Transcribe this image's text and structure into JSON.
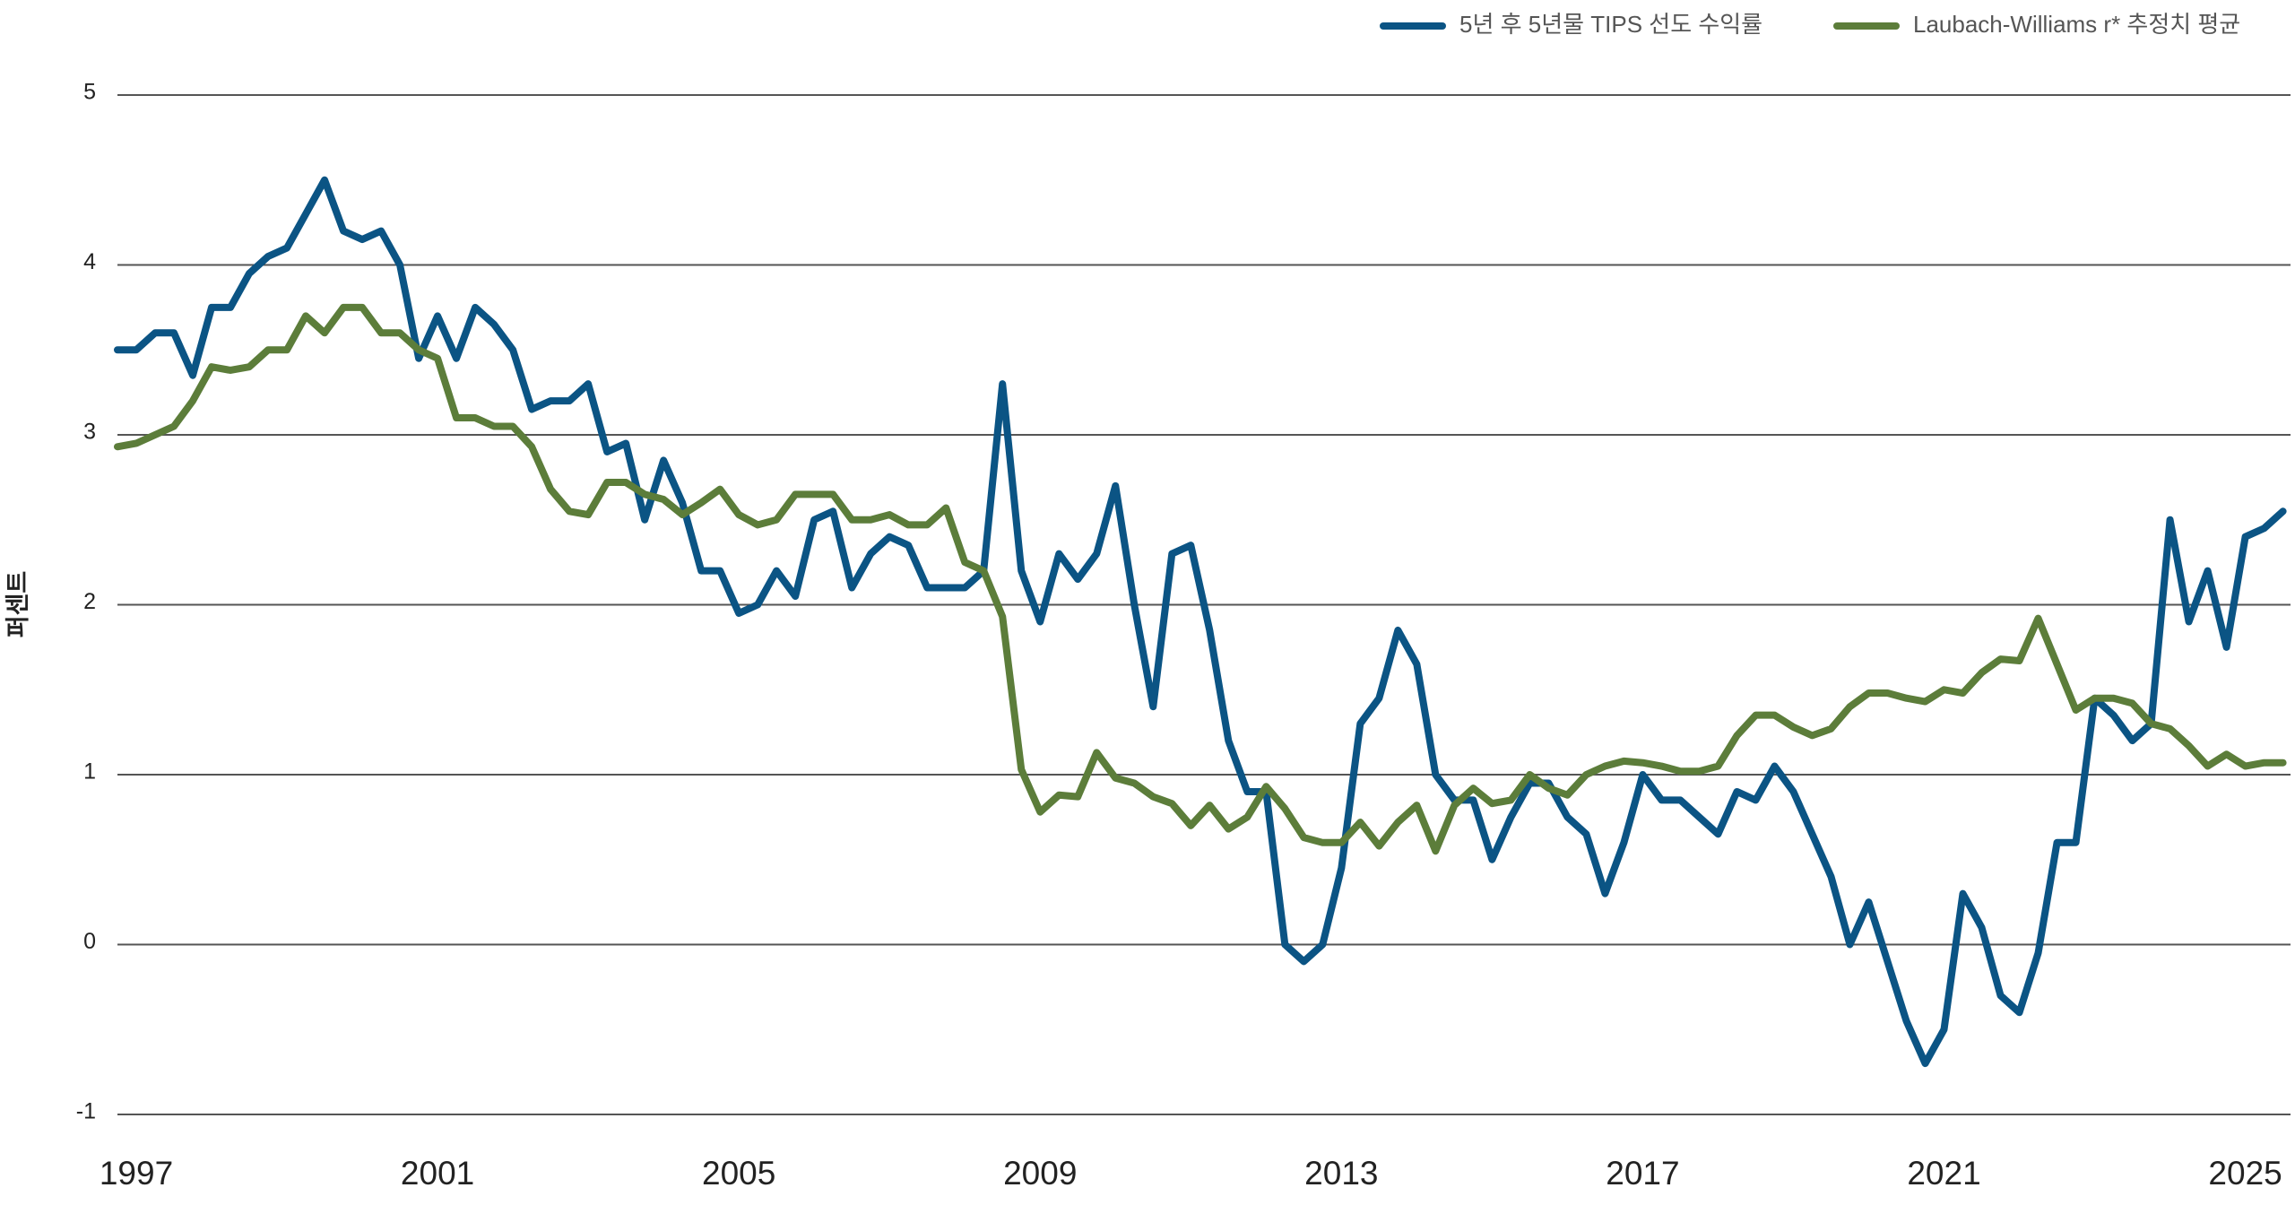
{
  "chart_data": {
    "type": "line",
    "y_label": "퍼센트",
    "x": [
      1996.75,
      1997,
      1997.25,
      1997.5,
      1997.75,
      1998,
      1998.25,
      1998.5,
      1998.75,
      1999,
      1999.25,
      1999.5,
      1999.75,
      2000,
      2000.25,
      2000.5,
      2000.75,
      2001,
      2001.25,
      2001.5,
      2001.75,
      2002,
      2002.25,
      2002.5,
      2002.75,
      2003,
      2003.25,
      2003.5,
      2003.75,
      2004,
      2004.25,
      2004.5,
      2004.75,
      2005,
      2005.25,
      2005.5,
      2005.75,
      2006,
      2006.25,
      2006.5,
      2006.75,
      2007,
      2007.25,
      2007.5,
      2007.75,
      2008,
      2008.25,
      2008.5,
      2008.75,
      2009,
      2009.25,
      2009.5,
      2009.75,
      2010,
      2010.25,
      2010.5,
      2010.75,
      2011,
      2011.25,
      2011.5,
      2011.75,
      2012,
      2012.25,
      2012.5,
      2012.75,
      2013,
      2013.25,
      2013.5,
      2013.75,
      2014,
      2014.25,
      2014.5,
      2014.75,
      2015,
      2015.25,
      2015.5,
      2015.75,
      2016,
      2016.25,
      2016.5,
      2016.75,
      2017,
      2017.25,
      2017.5,
      2017.75,
      2018,
      2018.25,
      2018.5,
      2018.75,
      2019,
      2019.25,
      2019.5,
      2019.75,
      2020,
      2020.25,
      2020.5,
      2020.75,
      2021,
      2021.25,
      2021.5,
      2021.75,
      2022,
      2022.25,
      2022.5,
      2022.75,
      2023,
      2023.25,
      2023.5,
      2023.75,
      2024,
      2024.25,
      2024.5,
      2024.75,
      2025,
      2025.25,
      2025.5
    ],
    "series": [
      {
        "name": "5년 후 5년물 TIPS 선도 수익률",
        "color": "#0b5484",
        "values": [
          3.5,
          3.5,
          3.6,
          3.6,
          3.35,
          3.75,
          3.75,
          3.95,
          4.05,
          4.1,
          4.3,
          4.5,
          4.2,
          4.15,
          4.2,
          4.0,
          3.45,
          3.7,
          3.45,
          3.75,
          3.65,
          3.5,
          3.15,
          3.2,
          3.2,
          3.3,
          2.9,
          2.95,
          2.5,
          2.85,
          2.6,
          2.2,
          2.2,
          1.95,
          2.0,
          2.2,
          2.05,
          2.5,
          2.55,
          2.1,
          2.3,
          2.4,
          2.35,
          2.1,
          2.1,
          2.1,
          2.2,
          3.3,
          2.2,
          1.9,
          2.3,
          2.15,
          2.3,
          2.7,
          2.0,
          1.4,
          2.3,
          2.35,
          1.85,
          1.2,
          0.9,
          0.9,
          0.0,
          -0.1,
          0.0,
          0.45,
          1.3,
          1.45,
          1.85,
          1.65,
          1.0,
          0.85,
          0.85,
          0.5,
          0.75,
          0.95,
          0.95,
          0.75,
          0.65,
          0.3,
          0.6,
          1.0,
          0.85,
          0.85,
          0.75,
          0.65,
          0.9,
          0.85,
          1.05,
          0.9,
          0.65,
          0.4,
          0.0,
          0.25,
          -0.1,
          -0.45,
          -0.7,
          -0.5,
          0.3,
          0.1,
          -0.3,
          -0.4,
          -0.05,
          0.6,
          0.6,
          1.45,
          1.35,
          1.2,
          1.3,
          2.5,
          1.9,
          2.2,
          1.75,
          2.4,
          2.45,
          2.55
        ]
      },
      {
        "name": "Laubach-Williams r* 추정치 평균",
        "color": "#5c7d3a",
        "values": [
          2.93,
          2.95,
          3.0,
          3.05,
          3.2,
          3.4,
          3.38,
          3.4,
          3.5,
          3.5,
          3.7,
          3.6,
          3.75,
          3.75,
          3.6,
          3.6,
          3.5,
          3.45,
          3.1,
          3.1,
          3.05,
          3.05,
          2.93,
          2.68,
          2.55,
          2.53,
          2.72,
          2.72,
          2.65,
          2.62,
          2.53,
          2.6,
          2.68,
          2.53,
          2.47,
          2.5,
          2.65,
          2.65,
          2.65,
          2.5,
          2.5,
          2.53,
          2.47,
          2.47,
          2.57,
          2.25,
          2.2,
          1.93,
          1.03,
          0.78,
          0.88,
          0.87,
          1.13,
          0.98,
          0.95,
          0.87,
          0.83,
          0.7,
          0.82,
          0.68,
          0.75,
          0.93,
          0.8,
          0.63,
          0.6,
          0.6,
          0.72,
          0.58,
          0.72,
          0.82,
          0.55,
          0.82,
          0.92,
          0.83,
          0.85,
          1.0,
          0.92,
          0.88,
          1.0,
          1.05,
          1.08,
          1.07,
          1.05,
          1.02,
          1.02,
          1.05,
          1.23,
          1.35,
          1.35,
          1.28,
          1.23,
          1.27,
          1.4,
          1.48,
          1.48,
          1.45,
          1.43,
          1.5,
          1.48,
          1.6,
          1.68,
          1.67,
          1.92,
          1.65,
          1.38,
          1.45,
          1.45,
          1.42,
          1.3,
          1.27,
          1.17,
          1.05,
          1.12,
          1.05,
          1.07,
          1.07
        ]
      }
    ],
    "xlim": [
      1996.75,
      2025.6
    ],
    "xticks": [
      1997,
      2001,
      2005,
      2009,
      2013,
      2017,
      2021,
      2025
    ],
    "ylim": [
      -1,
      5
    ],
    "yticks": [
      -1,
      0,
      1,
      2,
      3,
      4,
      5
    ],
    "grid": true,
    "legend": "top-right"
  }
}
